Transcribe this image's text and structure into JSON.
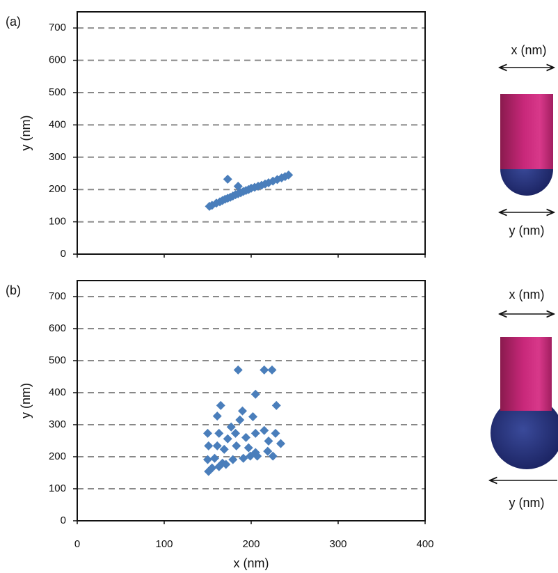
{
  "chart_data": [
    {
      "type": "scatter",
      "panel_label": "(a)",
      "y_label": "y (nm)",
      "color": "#4a7ebb",
      "xlim": [
        0,
        400
      ],
      "xticks": [
        0,
        100,
        200,
        300,
        400
      ],
      "xtick_labels": false,
      "ylim": [
        0,
        750
      ],
      "yticks": [
        0,
        100,
        200,
        300,
        400,
        500,
        600,
        700
      ],
      "grid": true,
      "x": [
        152,
        155,
        160,
        164,
        167,
        170,
        173,
        176,
        179,
        182,
        185,
        188,
        191,
        194,
        197,
        200,
        204,
        208,
        212,
        216,
        220,
        225,
        230,
        235,
        239,
        243,
        173,
        185
      ],
      "y": [
        148,
        151,
        158,
        162,
        166,
        170,
        173,
        176,
        180,
        184,
        187,
        190,
        194,
        197,
        200,
        204,
        207,
        210,
        213,
        217,
        221,
        226,
        231,
        236,
        240,
        245,
        232,
        210
      ]
    },
    {
      "type": "scatter",
      "panel_label": "(b)",
      "x_label": "x (nm)",
      "y_label": "y (nm)",
      "color": "#4a7ebb",
      "xlim": [
        0,
        400
      ],
      "xticks": [
        0,
        100,
        200,
        300,
        400
      ],
      "xtick_labels": true,
      "ylim": [
        0,
        750
      ],
      "yticks": [
        0,
        100,
        200,
        300,
        400,
        500,
        600,
        700
      ],
      "grid": true,
      "x": [
        185,
        215,
        224,
        205,
        229,
        165,
        161,
        190,
        202,
        177,
        187,
        150,
        163,
        173,
        182,
        194,
        205,
        215,
        228,
        234,
        220,
        151,
        161,
        169,
        183,
        197,
        205,
        150,
        158,
        167,
        179,
        191,
        199,
        151,
        155,
        163,
        171,
        219,
        225,
        207
      ],
      "y": [
        471,
        471,
        471,
        395,
        360,
        360,
        327,
        343,
        325,
        293,
        315,
        273,
        273,
        256,
        273,
        260,
        273,
        282,
        273,
        241,
        249,
        234,
        234,
        223,
        234,
        228,
        213,
        191,
        195,
        180,
        191,
        195,
        202,
        154,
        165,
        169,
        176,
        217,
        202,
        202
      ]
    }
  ],
  "diagrams": [
    {
      "top_label": "x (nm)",
      "bottom_label": "y (nm)"
    },
    {
      "top_label": "x (nm)",
      "bottom_label": "y (nm)"
    }
  ]
}
